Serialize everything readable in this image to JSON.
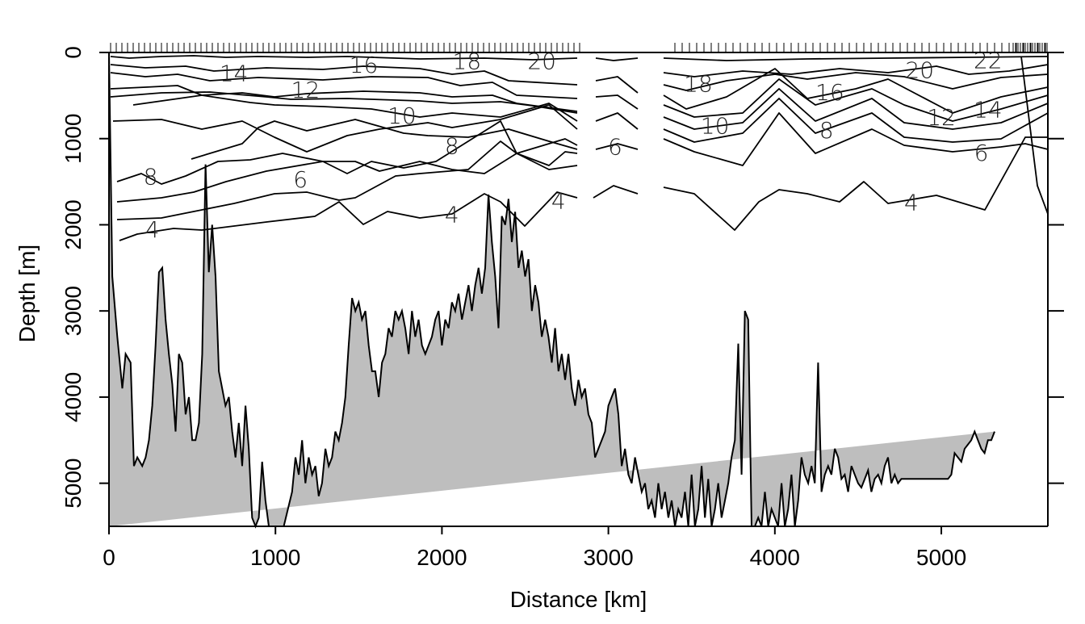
{
  "chart_data": {
    "type": "area",
    "title": "",
    "xlabel": "Distance [km]",
    "ylabel": "Depth [m]",
    "xlim": [
      0,
      5640
    ],
    "ylim": [
      5500,
      0
    ],
    "y_reversed": true,
    "x_ticks": [
      0,
      1000,
      2000,
      3000,
      4000,
      5000
    ],
    "y_ticks": [
      0,
      1000,
      2000,
      3000,
      4000,
      5000
    ],
    "grid": false,
    "bathymetry_fill": "#bebebe",
    "line_color": "#000000",
    "series": [
      {
        "kind": "bottom_topography",
        "x": [
          0,
          20,
          50,
          80,
          100,
          130,
          150,
          170,
          200,
          220,
          240,
          260,
          280,
          300,
          320,
          340,
          360,
          380,
          400,
          420,
          440,
          460,
          480,
          500,
          520,
          540,
          560,
          580,
          600,
          620,
          640,
          660,
          680,
          700,
          720,
          740,
          760,
          780,
          800,
          820,
          840,
          860,
          880,
          900,
          920,
          940,
          960,
          980,
          1000,
          1050,
          1100,
          1120,
          1140,
          1160,
          1180,
          1200,
          1220,
          1240,
          1260,
          1280,
          1300,
          1320,
          1340,
          1360,
          1380,
          1400,
          1420,
          1440,
          1460,
          1480,
          1500,
          1520,
          1540,
          1560,
          1580,
          1600,
          1620,
          1640,
          1660,
          1680,
          1700,
          1720,
          1740,
          1760,
          1780,
          1800,
          1820,
          1840,
          1860,
          1880,
          1900,
          1920,
          1940,
          1960,
          1980,
          2000,
          2020,
          2040,
          2060,
          2080,
          2100,
          2120,
          2140,
          2160,
          2180,
          2200,
          2220,
          2240,
          2260,
          2280,
          2300,
          2320,
          2340,
          2360,
          2380,
          2400,
          2420,
          2440,
          2460,
          2480,
          2500,
          2520,
          2540,
          2560,
          2580,
          2600,
          2620,
          2640,
          2660,
          2680,
          2700,
          2720,
          2740,
          2760,
          2780,
          2800,
          2820,
          2840,
          2860,
          2880,
          2900,
          2920,
          2940,
          2960,
          2980,
          3000,
          3020,
          3040,
          3060,
          3080,
          3100,
          3120,
          3140,
          3160,
          3180,
          3200,
          3220,
          3240,
          3260,
          3280,
          3300,
          3320,
          3340,
          3360,
          3380,
          3400,
          3420,
          3440,
          3460,
          3480,
          3500,
          3520,
          3540,
          3560,
          3580,
          3600,
          3620,
          3640,
          3660,
          3680,
          3700,
          3720,
          3740,
          3760,
          3780,
          3800,
          3820,
          3840,
          3860,
          3880,
          3900,
          3920,
          3940,
          3960,
          3980,
          4000,
          4020,
          4040,
          4060,
          4080,
          4100,
          4120,
          4140,
          4160,
          4180,
          4200,
          4220,
          4240,
          4260,
          4280,
          4300,
          4320,
          4340,
          4360,
          4380,
          4400,
          4420,
          4440,
          4460,
          4480,
          4500,
          4520,
          4540,
          4560,
          4580,
          4600,
          4620,
          4640,
          4660,
          4680,
          4700,
          4720,
          4740,
          4760,
          4780,
          4800,
          4820,
          4840,
          4860,
          4880,
          4900,
          4920,
          4940,
          4960,
          4980,
          5000,
          5020,
          5040,
          5060,
          5080,
          5100,
          5120,
          5140,
          5160,
          5180,
          5200,
          5220,
          5240,
          5260,
          5280,
          5300,
          5320,
          5340,
          5360,
          5380,
          5400,
          5420,
          5440,
          5460,
          5480,
          5500,
          5520,
          5540,
          5560,
          5580,
          5600,
          5620,
          5640
        ],
        "depth": [
          0,
          2600,
          3300,
          3900,
          3500,
          3600,
          4800,
          4700,
          4800,
          4700,
          4500,
          4100,
          3400,
          2550,
          2500,
          3100,
          3500,
          3850,
          4400,
          3500,
          3600,
          4200,
          4000,
          4500,
          4500,
          4300,
          3500,
          1300,
          2550,
          2000,
          2600,
          3700,
          3900,
          4100,
          4000,
          4400,
          4700,
          4300,
          4800,
          4100,
          4600,
          5400,
          5500,
          5400,
          4750,
          5200,
          5500,
          5500,
          5500,
          5500,
          5100,
          4700,
          4900,
          4500,
          5000,
          4700,
          4900,
          4800,
          5150,
          5000,
          4600,
          4800,
          4700,
          4400,
          4500,
          4300,
          4000,
          3400,
          2850,
          3000,
          2900,
          3100,
          3000,
          3400,
          3700,
          3700,
          4000,
          3600,
          3500,
          3200,
          3300,
          3000,
          3100,
          3000,
          3200,
          3500,
          3000,
          3300,
          3100,
          3400,
          3500,
          3400,
          3300,
          3100,
          3000,
          3400,
          3100,
          3200,
          2900,
          3000,
          2800,
          3100,
          2900,
          2700,
          3000,
          2700,
          2500,
          2800,
          2500,
          1650,
          2200,
          2600,
          3200,
          1900,
          2000,
          1700,
          2200,
          1850,
          2500,
          2300,
          2600,
          2400,
          3000,
          2700,
          2900,
          3300,
          3100,
          3300,
          3600,
          3200,
          3700,
          3500,
          3800,
          3500,
          3900,
          4100,
          3800,
          4000,
          3900,
          4200,
          4300,
          4700,
          4600,
          4500,
          4400,
          4100,
          4000,
          3900,
          4200,
          4800,
          4600,
          4900,
          5000,
          4700,
          4900,
          5100,
          5000,
          5300,
          5200,
          5400,
          5000,
          5300,
          5100,
          5400,
          5200,
          5500,
          5300,
          5400,
          5100,
          5500,
          4900,
          5500,
          5300,
          4800,
          5400,
          4950,
          5500,
          5300,
          5000,
          5400,
          5200,
          5000,
          4700,
          4500,
          3380,
          4900,
          3000,
          3100,
          5500,
          5500,
          5400,
          5500,
          5100,
          5500,
          5300,
          5400,
          5500,
          5000,
          5500,
          5300,
          4900,
          5500,
          5200,
          4700,
          4900,
          5000,
          4800,
          5000,
          3600,
          5100,
          4900,
          4800,
          4900,
          4600,
          4700,
          4950,
          4900,
          5100,
          4800,
          4900,
          5000,
          5050,
          4950,
          4850,
          5100,
          4950,
          4900,
          5000,
          4800,
          4700,
          5000,
          4900,
          5000,
          4950,
          4950,
          4950,
          4950,
          4950,
          4950,
          4950,
          4950,
          4950,
          4950,
          4950,
          4950,
          4950,
          4950,
          4950,
          4900,
          4650,
          4700,
          4750,
          4600,
          4550,
          4500,
          4400,
          4500,
          4600,
          4650,
          4500,
          4500,
          4400
        ]
      },
      {
        "kind": "contour",
        "name": "",
        "level_labels": [
          {
            "text": "14",
            "x": 750,
            "depth": 240
          },
          {
            "text": "16",
            "x": 1530,
            "depth": 140
          },
          {
            "text": "18",
            "x": 2150,
            "depth": 100
          },
          {
            "text": "20",
            "x": 2600,
            "depth": 100
          },
          {
            "text": "12",
            "x": 1180,
            "depth": 430
          },
          {
            "text": "10",
            "x": 1760,
            "depth": 730
          },
          {
            "text": "8",
            "x": 250,
            "depth": 1440
          },
          {
            "text": "8",
            "x": 2060,
            "depth": 1080
          },
          {
            "text": "6",
            "x": 1150,
            "depth": 1470
          },
          {
            "text": "6",
            "x": 3040,
            "depth": 1090
          },
          {
            "text": "4",
            "x": 260,
            "depth": 2050
          },
          {
            "text": "4",
            "x": 2060,
            "depth": 1880
          },
          {
            "text": "4",
            "x": 2700,
            "depth": 1720
          },
          {
            "text": "18",
            "x": 3540,
            "depth": 360
          },
          {
            "text": "16",
            "x": 4330,
            "depth": 460
          },
          {
            "text": "20",
            "x": 4870,
            "depth": 200
          },
          {
            "text": "22",
            "x": 5280,
            "depth": 90
          },
          {
            "text": "10",
            "x": 3640,
            "depth": 850
          },
          {
            "text": "8",
            "x": 4310,
            "depth": 900
          },
          {
            "text": "12",
            "x": 5000,
            "depth": 750
          },
          {
            "text": "14",
            "x": 5280,
            "depth": 660
          },
          {
            "text": "6",
            "x": 5240,
            "depth": 1160
          },
          {
            "text": "4",
            "x": 4820,
            "depth": 1740
          }
        ]
      }
    ]
  }
}
